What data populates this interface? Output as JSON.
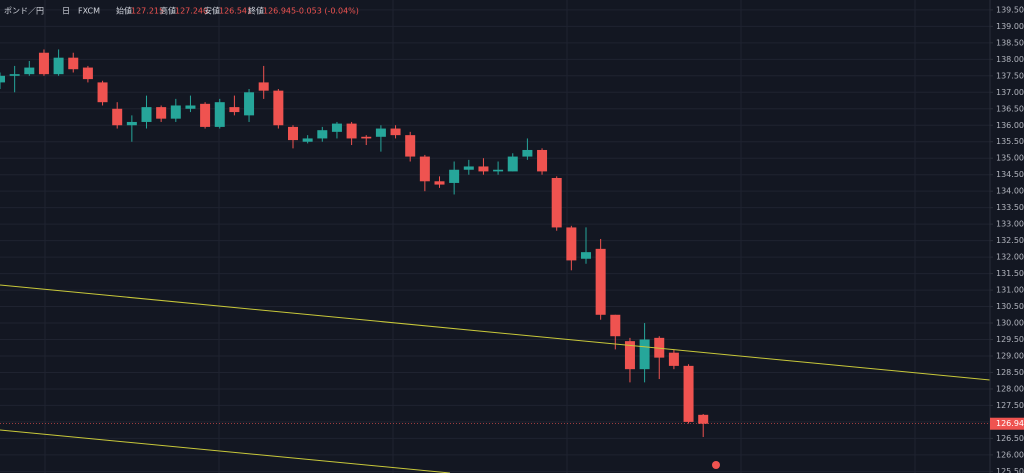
{
  "header": {
    "symbol": "ポンド／円",
    "interval": "日",
    "source": "FXCM",
    "open_label": "始値",
    "open": "127.215",
    "high_label": "高値",
    "high": "127.240",
    "low_label": "安値",
    "low": "126.541",
    "close_label": "終値",
    "close": "126.945",
    "change": "-0.053 (-0.04%)"
  },
  "chart_data": {
    "type": "candlestick",
    "up_color": "#26a69a",
    "down_color": "#ef5350",
    "open": [
      137.3,
      137.5,
      137.55,
      138.2,
      137.55,
      138.05,
      137.75,
      137.3,
      136.5,
      136.0,
      136.1,
      136.55,
      136.2,
      136.5,
      136.65,
      135.95,
      136.55,
      136.3,
      137.3,
      137.05,
      135.95,
      135.5,
      135.6,
      135.8,
      136.05,
      135.65,
      135.65,
      135.9,
      135.7,
      135.05,
      134.3,
      134.25,
      134.65,
      134.75,
      134.6,
      134.6,
      135.05,
      135.25,
      134.4,
      132.9,
      131.95,
      132.25,
      130.25,
      129.45,
      128.6,
      129.55,
      129.1,
      128.7,
      127.215
    ],
    "high": [
      137.6,
      137.8,
      137.95,
      138.3,
      138.3,
      138.2,
      137.8,
      137.35,
      136.7,
      136.3,
      136.9,
      136.6,
      136.8,
      136.9,
      136.7,
      136.8,
      136.9,
      137.1,
      137.8,
      137.1,
      136.0,
      135.7,
      135.95,
      136.1,
      136.1,
      135.7,
      136.0,
      136.0,
      135.8,
      135.1,
      134.45,
      134.9,
      134.95,
      135.0,
      134.9,
      135.15,
      135.6,
      135.3,
      134.45,
      132.95,
      132.9,
      132.55,
      130.25,
      129.55,
      130.0,
      129.6,
      129.2,
      128.75,
      127.24
    ],
    "low": [
      137.1,
      137.0,
      137.5,
      137.5,
      137.5,
      137.6,
      137.3,
      136.6,
      135.9,
      135.5,
      135.9,
      136.1,
      136.1,
      136.4,
      135.9,
      135.9,
      136.3,
      136.1,
      136.8,
      135.9,
      135.3,
      135.45,
      135.5,
      135.6,
      135.4,
      135.4,
      135.2,
      135.6,
      134.9,
      134.0,
      134.1,
      133.9,
      134.5,
      134.5,
      134.5,
      134.6,
      134.95,
      134.5,
      132.8,
      131.6,
      131.8,
      130.1,
      129.2,
      128.2,
      128.2,
      128.3,
      128.6,
      126.95,
      126.541
    ],
    "close": [
      137.5,
      137.55,
      137.75,
      137.55,
      138.05,
      137.7,
      137.4,
      136.7,
      136.0,
      136.1,
      136.55,
      136.2,
      136.6,
      136.6,
      135.95,
      136.7,
      136.4,
      137.0,
      137.05,
      136.0,
      135.55,
      135.6,
      135.85,
      136.05,
      135.6,
      135.6,
      135.9,
      135.7,
      135.05,
      134.3,
      134.2,
      134.65,
      134.75,
      134.6,
      134.65,
      135.05,
      135.25,
      134.6,
      132.9,
      131.9,
      132.15,
      130.25,
      129.6,
      128.6,
      129.5,
      128.95,
      128.7,
      127.0,
      126.945
    ],
    "ylim": [
      125.45,
      139.8
    ],
    "yticks": [
      {
        "value": 125.5,
        "label": "125.500"
      },
      {
        "value": 126,
        "label": "126.000"
      },
      {
        "value": 126.5,
        "label": "126.500"
      },
      {
        "value": 127,
        "label": "127.000"
      },
      {
        "value": 127.5,
        "label": "127.500"
      },
      {
        "value": 128,
        "label": "128.000"
      },
      {
        "value": 128.5,
        "label": "128.500"
      },
      {
        "value": 129,
        "label": "129.000"
      },
      {
        "value": 129.5,
        "label": "129.500"
      },
      {
        "value": 130,
        "label": "130.000"
      },
      {
        "value": 130.5,
        "label": "130.500"
      },
      {
        "value": 131,
        "label": "131.000"
      },
      {
        "value": 131.5,
        "label": "131.500"
      },
      {
        "value": 132,
        "label": "132.000"
      },
      {
        "value": 132.5,
        "label": "132.500"
      },
      {
        "value": 133,
        "label": "133.000"
      },
      {
        "value": 133.5,
        "label": "133.500"
      },
      {
        "value": 134,
        "label": "134.000"
      },
      {
        "value": 134.5,
        "label": "134.500"
      },
      {
        "value": 135,
        "label": "135.000"
      },
      {
        "value": 135.5,
        "label": "135.500"
      },
      {
        "value": 136,
        "label": "136.000"
      },
      {
        "value": 136.5,
        "label": "136.500"
      },
      {
        "value": 137,
        "label": "137.000"
      },
      {
        "value": 137.5,
        "label": "137.500"
      },
      {
        "value": 138,
        "label": "138.000"
      },
      {
        "value": 138.5,
        "label": "138.500"
      },
      {
        "value": 139,
        "label": "139.000"
      },
      {
        "value": 139.5,
        "label": "139.500"
      }
    ],
    "grid": true
  }
}
